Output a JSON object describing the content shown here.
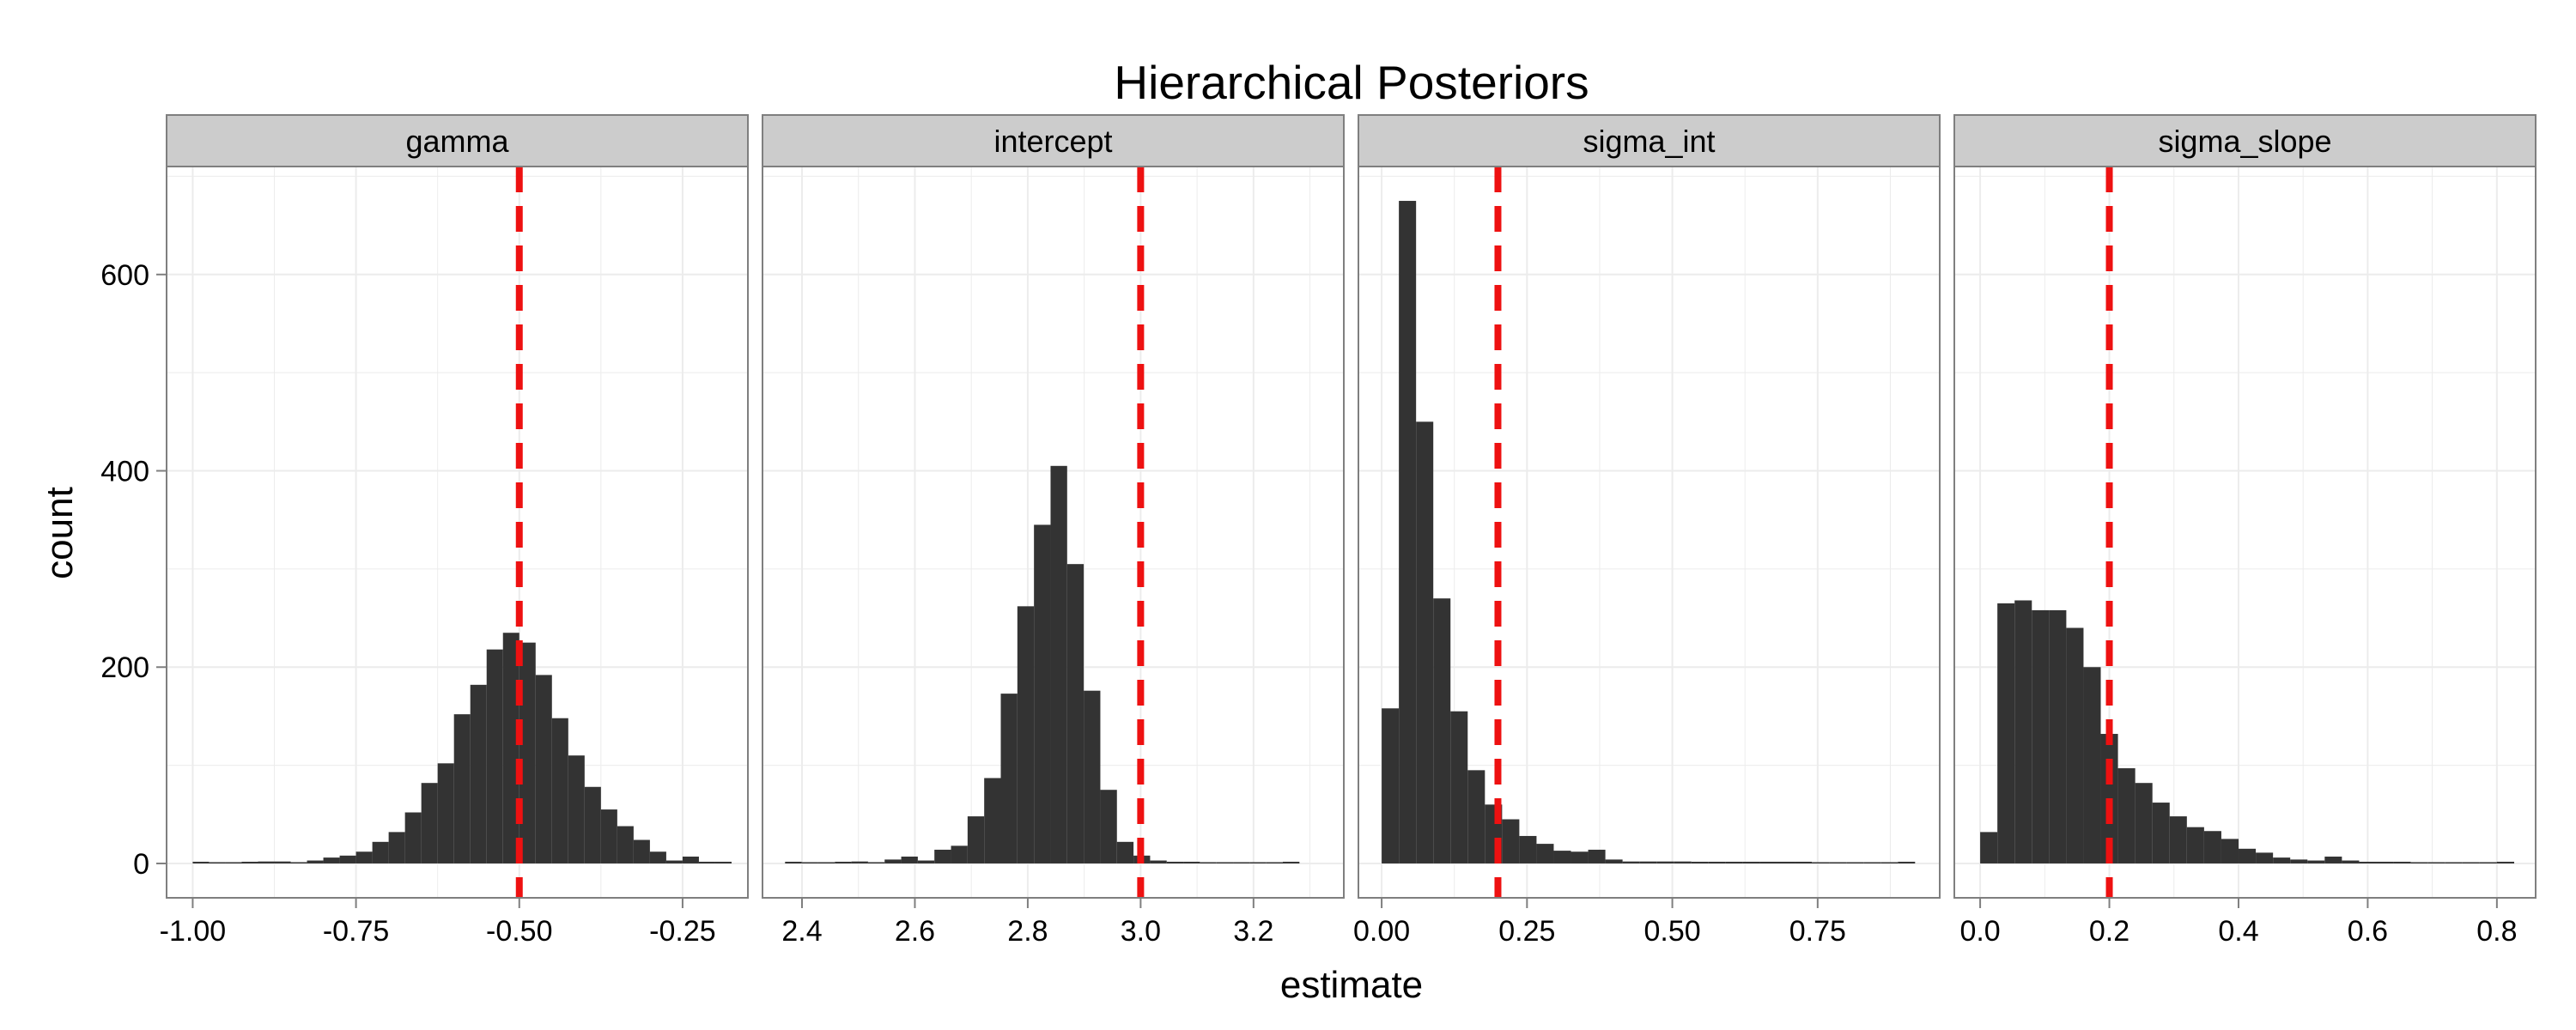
{
  "chart_data": {
    "type": "bar",
    "title": "Hierarchical Posteriors",
    "xlabel": "estimate",
    "ylabel": "count",
    "ylim": [
      -35,
      710
    ],
    "yticks": [
      0,
      200,
      400,
      600
    ],
    "grid": true,
    "colors": {
      "bar": "#333333",
      "reference_line": "#ee1111",
      "panel_background": "#ffffff",
      "strip_background": "#cccccc",
      "grid": "#ececec",
      "border": "#7f7f7f"
    },
    "panels": [
      {
        "name": "gamma",
        "xlim": [
          -1.04,
          -0.15
        ],
        "xticks": [
          -1.0,
          -0.75,
          -0.5,
          -0.25
        ],
        "xtick_labels": [
          "-1.00",
          "-0.75",
          "-0.50",
          "-0.25"
        ],
        "reference_value": -0.5,
        "bins": {
          "start": -1.0,
          "width": 0.025,
          "counts": [
            1,
            0,
            0,
            1,
            2,
            2,
            0,
            3,
            6,
            8,
            12,
            22,
            32,
            52,
            82,
            102,
            152,
            182,
            218,
            235,
            225,
            192,
            148,
            110,
            78,
            55,
            38,
            24,
            12,
            3,
            7,
            1,
            1
          ]
        }
      },
      {
        "name": "intercept",
        "xlim": [
          2.33,
          3.36
        ],
        "xticks": [
          2.4,
          2.6,
          2.8,
          3.0,
          3.2
        ],
        "xtick_labels": [
          "2.4",
          "2.6",
          "2.8",
          "3.0",
          "3.2"
        ],
        "reference_value": 3.0,
        "bins": {
          "start": 2.37,
          "width": 0.0294,
          "counts": [
            1,
            0,
            0,
            1,
            2,
            0,
            4,
            7,
            3,
            14,
            18,
            48,
            87,
            173,
            262,
            345,
            405,
            305,
            176,
            75,
            22,
            8,
            3,
            1,
            1,
            0,
            0,
            0,
            0,
            0,
            1
          ]
        }
      },
      {
        "name": "sigma_int",
        "xlim": [
          -0.04,
          0.96
        ],
        "xticks": [
          0.0,
          0.25,
          0.5,
          0.75
        ],
        "xtick_labels": [
          "0.00",
          "0.25",
          "0.50",
          "0.75"
        ],
        "reference_value": 0.2,
        "bins": {
          "start": 0.0,
          "width": 0.0296,
          "counts": [
            158,
            675,
            450,
            270,
            155,
            95,
            60,
            45,
            28,
            20,
            13,
            12,
            14,
            4,
            2,
            2,
            2,
            2,
            1,
            1,
            1,
            1,
            1,
            1,
            1,
            0,
            0,
            0,
            0,
            0,
            1
          ]
        }
      },
      {
        "name": "sigma_slope",
        "xlim": [
          -0.04,
          0.86
        ],
        "xticks": [
          0.0,
          0.2,
          0.4,
          0.6,
          0.8
        ],
        "xtick_labels": [
          "0.0",
          "0.2",
          "0.4",
          "0.6",
          "0.8"
        ],
        "reference_value": 0.2,
        "bins": {
          "start": 0.0,
          "width": 0.02667,
          "counts": [
            32,
            265,
            268,
            258,
            258,
            240,
            200,
            132,
            97,
            82,
            62,
            48,
            37,
            33,
            25,
            15,
            11,
            6,
            4,
            3,
            7,
            3,
            1,
            1,
            1,
            0,
            0,
            0,
            0,
            0,
            1
          ]
        }
      }
    ]
  }
}
